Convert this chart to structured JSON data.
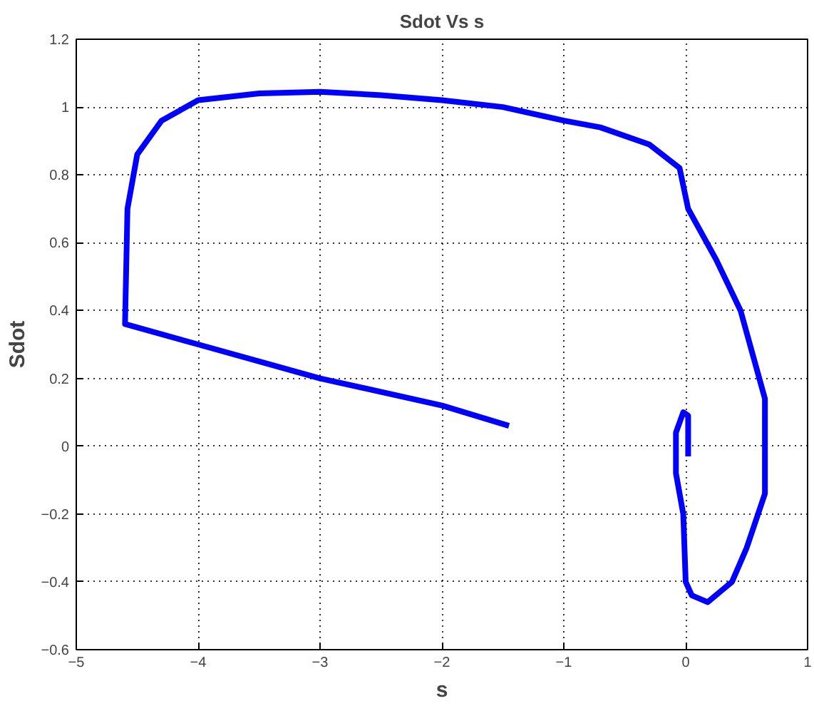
{
  "chart_data": {
    "type": "line",
    "title": "Sdot Vs s",
    "xlabel": "s",
    "ylabel": "Sdot",
    "xlim": [
      -5,
      1
    ],
    "ylim": [
      -0.6,
      1.2
    ],
    "xticks": [
      -5,
      -4,
      -3,
      -2,
      -1,
      0,
      1
    ],
    "yticks": [
      -0.6,
      -0.4,
      -0.2,
      0,
      0.2,
      0.4,
      0.6,
      0.8,
      1,
      1.2
    ],
    "grid": true,
    "line_style": "solid",
    "series": [
      {
        "color": "#0000ff",
        "x": [
          -1.45,
          -2,
          -3,
          -4,
          -4.6,
          -4.58,
          -4.5,
          -4.3,
          -4,
          -3.5,
          -3,
          -2.5,
          -2,
          -1.5,
          -1,
          -0.7,
          -0.3,
          -0.05,
          0.02,
          0.25,
          0.45,
          0.65,
          0.65,
          0.5,
          0.38,
          0.18,
          0.05,
          0,
          -0.02,
          -0.08,
          -0.08,
          -0.02,
          0.02,
          0.02
        ],
        "values": [
          0.06,
          0.12,
          0.2,
          0.3,
          0.36,
          0.7,
          0.86,
          0.96,
          1.02,
          1.04,
          1.045,
          1.035,
          1.02,
          1.0,
          0.96,
          0.94,
          0.89,
          0.82,
          0.7,
          0.55,
          0.4,
          0.14,
          -0.14,
          -0.3,
          -0.4,
          -0.46,
          -0.44,
          -0.4,
          -0.2,
          -0.08,
          0.04,
          0.1,
          0.09,
          -0.03
        ]
      }
    ]
  }
}
